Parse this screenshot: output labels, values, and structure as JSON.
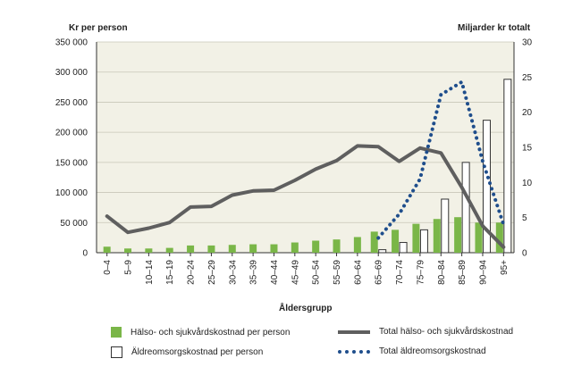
{
  "chart_data": {
    "type": "bar",
    "ylabel_left": "Kr per person",
    "ylabel_right": "Miljarder kr totalt",
    "xlabel": "Åldersgrupp",
    "categories": [
      "0–4",
      "5–9",
      "10–14",
      "15–19",
      "20–24",
      "25–29",
      "30–34",
      "35–39",
      "40–44",
      "45–49",
      "50–54",
      "55–59",
      "60–64",
      "65–69",
      "70–74",
      "75–79",
      "80–84",
      "85–89",
      "90–94",
      "95+"
    ],
    "ylim_left": [
      0,
      350000
    ],
    "ylim_right": [
      0,
      30
    ],
    "left_ticks": [
      "0",
      "50 000",
      "100 000",
      "150 000",
      "200 000",
      "250 000",
      "300 000",
      "350 000"
    ],
    "left_tick_values": [
      0,
      50000,
      100000,
      150000,
      200000,
      250000,
      300000,
      350000
    ],
    "right_ticks": [
      "0",
      "5",
      "10",
      "15",
      "20",
      "25",
      "30"
    ],
    "right_tick_values": [
      0,
      5,
      10,
      15,
      20,
      25,
      30
    ],
    "grid": "horizontal",
    "series": [
      {
        "name": "Hälso- och sjukvårdskostnad per person",
        "kind": "bar",
        "axis": "left",
        "color": "#7ab648",
        "values": [
          10000,
          7000,
          7000,
          8000,
          12000,
          12000,
          13000,
          14000,
          14000,
          17000,
          20000,
          22000,
          26000,
          35000,
          38000,
          48000,
          56000,
          59000,
          50000,
          50000
        ]
      },
      {
        "name": "Äldreomsorgskostnad per person",
        "kind": "bar",
        "axis": "left",
        "color": "#ffffff",
        "values": [
          null,
          null,
          null,
          null,
          null,
          null,
          null,
          null,
          null,
          null,
          null,
          null,
          null,
          5000,
          17000,
          38000,
          89000,
          150000,
          220000,
          288000
        ]
      },
      {
        "name": "Total hälso- och sjukvårdskostnad",
        "kind": "line",
        "axis": "right",
        "color": "#5f5f5f",
        "values": [
          5.2,
          2.9,
          3.5,
          4.3,
          6.5,
          6.6,
          8.2,
          8.8,
          8.9,
          10.3,
          11.9,
          13.1,
          15.2,
          15.1,
          13.0,
          14.9,
          14.2,
          9.3,
          3.8,
          0.8
        ]
      },
      {
        "name": "Total äldreomsorgskostnad",
        "kind": "dotted-line",
        "axis": "right",
        "color": "#1f4e8c",
        "values": [
          null,
          null,
          null,
          null,
          null,
          null,
          null,
          null,
          null,
          null,
          null,
          null,
          null,
          2.1,
          5.5,
          10.5,
          22.5,
          24.3,
          13.0,
          4.0
        ]
      }
    ],
    "legend_position": "bottom"
  }
}
